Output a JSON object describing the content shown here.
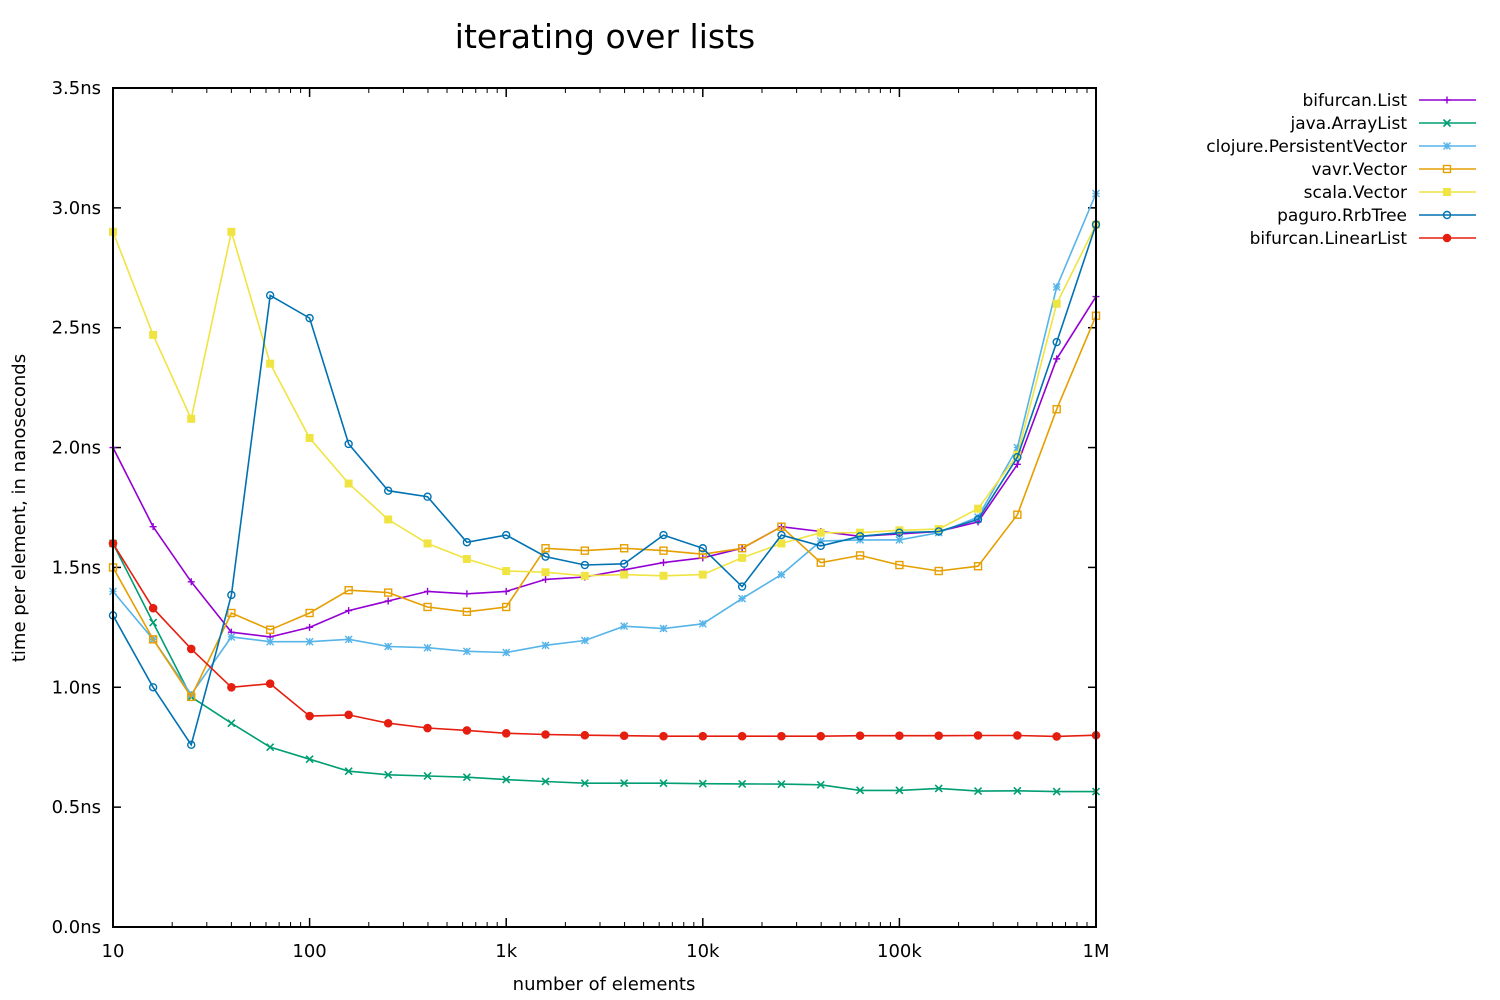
{
  "chart_data": {
    "type": "line",
    "title": "iterating over lists",
    "xlabel": "number of elements",
    "ylabel": "time per element, in nanoseconds",
    "x_scale": "log",
    "xlim": [
      10,
      1000000
    ],
    "ylim": [
      0,
      3.5
    ],
    "x_ticks": [
      {
        "value": 10,
        "label": "10"
      },
      {
        "value": 100,
        "label": "100"
      },
      {
        "value": 1000,
        "label": "1k"
      },
      {
        "value": 10000,
        "label": "10k"
      },
      {
        "value": 100000,
        "label": "100k"
      },
      {
        "value": 1000000,
        "label": "1M"
      }
    ],
    "y_ticks": [
      {
        "value": 0,
        "label": "0.0ns"
      },
      {
        "value": 0.5,
        "label": "0.5ns"
      },
      {
        "value": 1.0,
        "label": "1.0ns"
      },
      {
        "value": 1.5,
        "label": "1.5ns"
      },
      {
        "value": 2.0,
        "label": "2.0ns"
      },
      {
        "value": 2.5,
        "label": "2.5ns"
      },
      {
        "value": 3.0,
        "label": "3.0ns"
      },
      {
        "value": 3.5,
        "label": "3.5ns"
      }
    ],
    "grid": false,
    "legend_position": "top-right, outside plot",
    "x": [
      10,
      16,
      25,
      40,
      63,
      100,
      158,
      251,
      398,
      631,
      1000,
      1585,
      2512,
      3981,
      6310,
      10000,
      15849,
      25119,
      39811,
      63096,
      100000,
      158489,
      251189,
      398107,
      630957,
      1000000
    ],
    "series": [
      {
        "name": "bifurcan.List",
        "color": "#9400d3",
        "marker": "plus",
        "values": [
          2.0,
          1.67,
          1.44,
          1.23,
          1.21,
          1.25,
          1.32,
          1.36,
          1.4,
          1.39,
          1.4,
          1.45,
          1.46,
          1.49,
          1.52,
          1.54,
          1.58,
          1.67,
          1.65,
          1.63,
          1.64,
          1.65,
          1.69,
          1.93,
          2.37,
          2.63
        ]
      },
      {
        "name": "java.ArrayList",
        "color": "#009e73",
        "marker": "cross",
        "values": [
          1.6,
          1.27,
          0.96,
          0.85,
          0.75,
          0.7,
          0.65,
          0.635,
          0.63,
          0.625,
          0.615,
          0.607,
          0.6,
          0.6,
          0.6,
          0.598,
          0.597,
          0.596,
          0.593,
          0.57,
          0.57,
          0.578,
          0.567,
          0.568,
          0.565,
          0.565
        ]
      },
      {
        "name": "clojure.PersistentVector",
        "color": "#56b4e9",
        "marker": "star",
        "values": [
          1.4,
          1.2,
          0.97,
          1.21,
          1.19,
          1.19,
          1.2,
          1.17,
          1.165,
          1.15,
          1.145,
          1.175,
          1.195,
          1.255,
          1.245,
          1.265,
          1.37,
          1.47,
          1.61,
          1.615,
          1.615,
          1.645,
          1.71,
          2.0,
          2.67,
          3.06
        ]
      },
      {
        "name": "vavr.Vector",
        "color": "#e69f00",
        "marker": "open-square",
        "values": [
          1.5,
          1.2,
          0.96,
          1.31,
          1.24,
          1.31,
          1.405,
          1.395,
          1.335,
          1.315,
          1.335,
          1.58,
          1.57,
          1.58,
          1.57,
          1.555,
          1.58,
          1.67,
          1.52,
          1.55,
          1.51,
          1.485,
          1.505,
          1.72,
          2.16,
          2.55
        ]
      },
      {
        "name": "scala.Vector",
        "color": "#f0e442",
        "marker": "filled-square",
        "values": [
          2.9,
          2.47,
          2.12,
          2.9,
          2.35,
          2.04,
          1.85,
          1.7,
          1.6,
          1.535,
          1.485,
          1.48,
          1.465,
          1.47,
          1.465,
          1.47,
          1.54,
          1.6,
          1.645,
          1.645,
          1.655,
          1.66,
          1.745,
          1.97,
          2.6,
          2.93
        ]
      },
      {
        "name": "paguro.RrbTree",
        "color": "#0072b2",
        "marker": "open-circle",
        "values": [
          1.3,
          1.0,
          0.76,
          1.385,
          2.635,
          2.54,
          2.015,
          1.82,
          1.795,
          1.605,
          1.635,
          1.545,
          1.51,
          1.515,
          1.635,
          1.58,
          1.42,
          1.635,
          1.59,
          1.63,
          1.645,
          1.65,
          1.7,
          1.96,
          2.44,
          2.93
        ]
      },
      {
        "name": "bifurcan.LinearList",
        "color": "#e51e10",
        "marker": "filled-circle",
        "values": [
          1.6,
          1.33,
          1.16,
          1.0,
          1.015,
          0.88,
          0.885,
          0.85,
          0.83,
          0.82,
          0.808,
          0.803,
          0.8,
          0.798,
          0.796,
          0.796,
          0.796,
          0.796,
          0.796,
          0.798,
          0.798,
          0.798,
          0.799,
          0.799,
          0.795,
          0.8
        ]
      }
    ]
  }
}
